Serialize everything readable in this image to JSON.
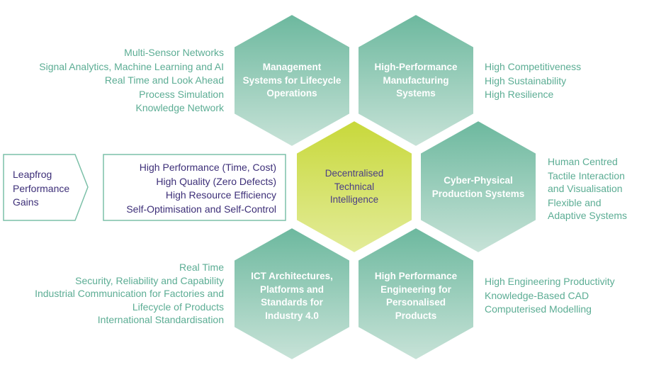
{
  "colors": {
    "hex_top": "#6cb89e",
    "hex_bottom": "#c8e3d8",
    "center_top": "#c8d83a",
    "center_bottom": "#e3ec9a",
    "text_green": "#5cad94",
    "text_purple": "#3d2f78",
    "box_border": "#7cc0a8"
  },
  "hexagons": {
    "management": [
      "Management",
      "Systems for Lifecycle",
      "Operations"
    ],
    "manufacturing": [
      "High-Performance",
      "Manufacturing",
      "Systems"
    ],
    "center": [
      "Decentralised",
      "Technical",
      "Intelligence"
    ],
    "cps": [
      "Cyber-Physical",
      "Production Systems"
    ],
    "ict": [
      "ICT Architectures,",
      "Platforms and",
      "Standards for",
      "Industry 4.0"
    ],
    "engineering": [
      "High Performance",
      "Engineering for",
      "Personalised",
      "Products"
    ]
  },
  "lists": {
    "management": [
      "Multi-Sensor Networks",
      "Signal Analytics, Machine Learning and AI",
      "Real Time and Look Ahead",
      "Process Simulation",
      "Knowledge Network"
    ],
    "manufacturing": [
      "High Competitiveness",
      "High Sustainability",
      "High Resilience"
    ],
    "cps": [
      "Human Centred",
      "Tactile Interaction",
      "and Visualisation",
      "Flexible and",
      "Adaptive Systems"
    ],
    "ict": [
      "Real Time",
      "Security, Reliability and Capability",
      "Industrial Communication for Factories and",
      "Lifecycle of Products",
      "International Standardisation"
    ],
    "engineering": [
      "High Engineering Productivity",
      "Knowledge-Based CAD",
      "Computerised Modelling"
    ],
    "gains": [
      "High Performance (Time, Cost)",
      "High Quality (Zero Defects)",
      "High Resource Efficiency",
      "Self-Optimisation and Self-Control"
    ]
  },
  "leapfrog": [
    "Leapfrog",
    "Performance",
    "Gains"
  ]
}
